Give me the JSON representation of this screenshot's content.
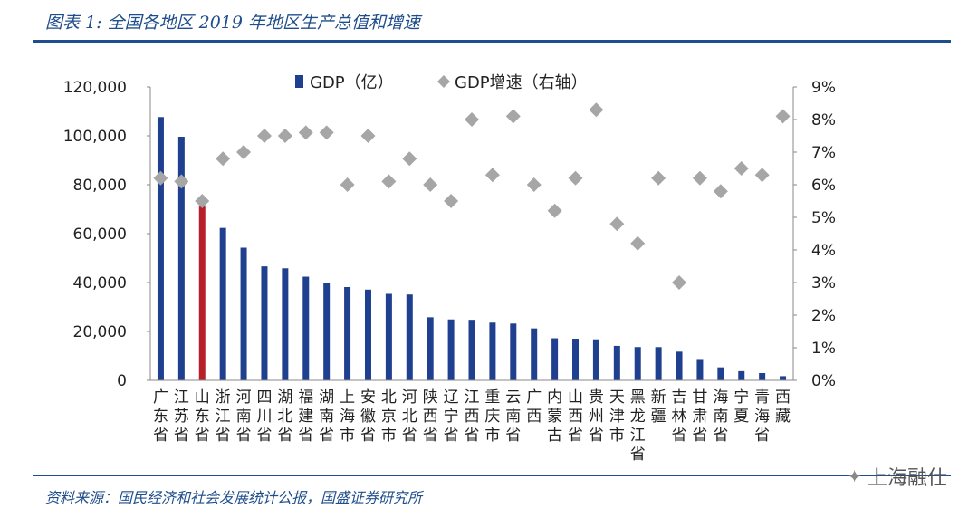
{
  "figure": {
    "title": "图表 1: 全国各地区 2019 年地区生产总值和增速",
    "source": "资料来源：国民经济和社会发展统计公报，国盛证券研究所",
    "watermark": "上海融仕"
  },
  "colors": {
    "bar": "#1f3f8f",
    "bar_highlight": "#b5202a",
    "diamond": "#a6a6a6",
    "accent": "#1f4e8c",
    "text": "#222222"
  },
  "icons": {
    "watermark": "wechat-icon"
  },
  "chart_data": {
    "type": "bar",
    "categories": [
      "广东省",
      "江苏省",
      "山东省",
      "浙江省",
      "河南省",
      "四川省",
      "湖北省",
      "福建省",
      "湖南省",
      "上海市",
      "安徽省",
      "北京市",
      "河北省",
      "陕西省",
      "辽宁省",
      "江西省",
      "重庆市",
      "云南省",
      "广西",
      "内蒙古",
      "山西省",
      "贵州省",
      "天津市",
      "黑龙江省",
      "新疆",
      "吉林省",
      "甘肃省",
      "海南省",
      "宁夏",
      "青海省",
      "西藏"
    ],
    "highlight_category": "山东省",
    "series": [
      {
        "name": "GDP（亿）",
        "axis": "left",
        "mark": "bar",
        "values": [
          107671,
          99632,
          71068,
          62352,
          54259,
          46616,
          45828,
          42395,
          39752,
          38155,
          37114,
          35371,
          35105,
          25793,
          24909,
          24758,
          23606,
          23224,
          21237,
          17213,
          17027,
          16769,
          14104,
          13613,
          13597,
          11727,
          8718,
          5309,
          3748,
          2966,
          1698
        ]
      },
      {
        "name": "GDP增速（右轴）",
        "axis": "right",
        "mark": "diamond",
        "values": [
          6.2,
          6.1,
          5.5,
          6.8,
          7.0,
          7.5,
          7.5,
          7.6,
          7.6,
          6.0,
          7.5,
          6.1,
          6.8,
          6.0,
          5.5,
          8.0,
          6.3,
          8.1,
          6.0,
          5.2,
          6.2,
          8.3,
          4.8,
          4.2,
          6.2,
          3.0,
          6.2,
          5.8,
          6.5,
          6.3,
          8.1
        ]
      }
    ],
    "y_left": {
      "min": 0,
      "max": 120000,
      "step": 20000,
      "ticks": [
        "0",
        "20,000",
        "40,000",
        "60,000",
        "80,000",
        "100,000",
        "120,000"
      ]
    },
    "y_right": {
      "min": 0,
      "max": 9,
      "step": 1,
      "ticks": [
        "0%",
        "1%",
        "2%",
        "3%",
        "4%",
        "5%",
        "6%",
        "7%",
        "8%",
        "9%"
      ]
    },
    "legend_position": "top-center",
    "grid": false
  }
}
